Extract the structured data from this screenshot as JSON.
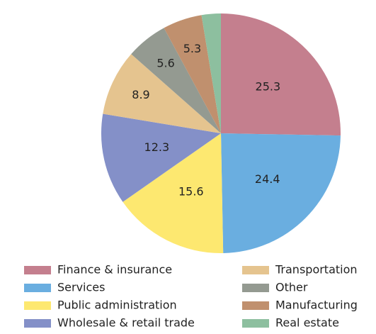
{
  "chart_data": {
    "type": "pie",
    "categories": [
      "Finance & insurance",
      "Services",
      "Public administration",
      "Wholesale & retail trade",
      "Transportation",
      "Other",
      "Manufacturing",
      "Real estate"
    ],
    "values": [
      25.3,
      24.4,
      15.6,
      12.3,
      8.9,
      5.6,
      5.3,
      2.6
    ],
    "value_labels": [
      "25.3",
      "24.4",
      "15.6",
      "12.3",
      "8.9",
      "5.6",
      "5.3",
      null
    ],
    "colors": [
      "#c47f8e",
      "#6aaee0",
      "#fde870",
      "#8490c8",
      "#e5c48f",
      "#949a91",
      "#c0906e",
      "#8dbf9f"
    ],
    "legend": "bottom"
  }
}
